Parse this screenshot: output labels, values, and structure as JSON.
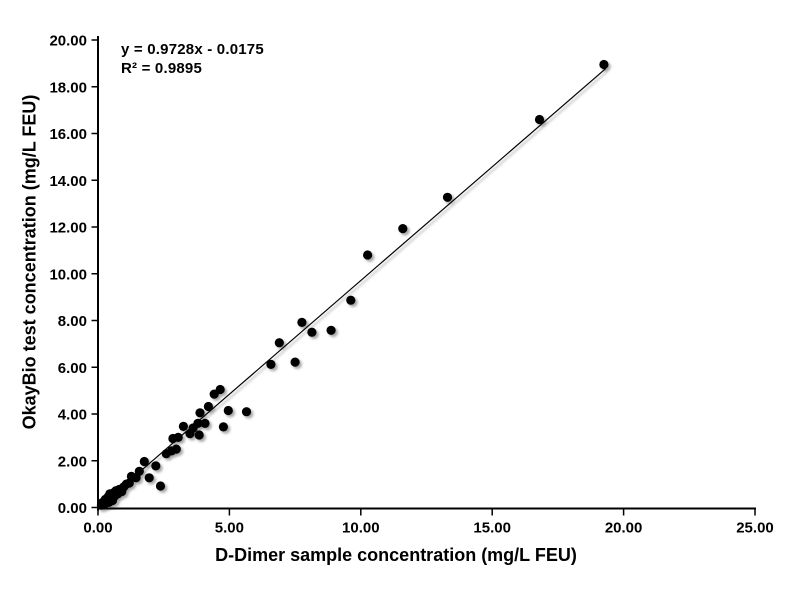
{
  "colors": {
    "background": "#ffffff",
    "marker": "#000000",
    "trendline": "#000000",
    "axis": "#000000",
    "text": "#000000"
  },
  "chart_data": {
    "type": "scatter",
    "title": "",
    "xlabel": "D-Dimer sample concentration (mg/L FEU)",
    "ylabel": "OkayBio test concentration (mg/L FEU)",
    "xlim": [
      0,
      25
    ],
    "ylim": [
      0,
      20
    ],
    "grid": false,
    "legend": "none",
    "x_tick_values": [
      0,
      5,
      10,
      15,
      20,
      25
    ],
    "x_tick_labels": [
      "0.00",
      "5.00",
      "10.00",
      "15.00",
      "20.00",
      "25.00"
    ],
    "y_tick_values": [
      0,
      2,
      4,
      6,
      8,
      10,
      12,
      14,
      16,
      18,
      20
    ],
    "y_tick_labels": [
      "0.00",
      "2.00",
      "4.00",
      "6.00",
      "8.00",
      "10.00",
      "12.00",
      "14.00",
      "16.00",
      "18.00",
      "20.00"
    ],
    "annotation": {
      "equation": "y = 0.9728x - 0.0175",
      "r_squared": "R² = 0.9895"
    },
    "trendline": {
      "slope": 0.9728,
      "intercept": -0.0175,
      "x_start": 0.12,
      "x_end": 19.32
    },
    "points": [
      [
        0.13,
        0.1
      ],
      [
        0.18,
        0.22
      ],
      [
        0.25,
        0.15
      ],
      [
        0.28,
        0.35
      ],
      [
        0.33,
        0.28
      ],
      [
        0.38,
        0.45
      ],
      [
        0.42,
        0.22
      ],
      [
        0.45,
        0.58
      ],
      [
        0.5,
        0.42
      ],
      [
        0.55,
        0.3
      ],
      [
        0.58,
        0.62
      ],
      [
        0.63,
        0.48
      ],
      [
        0.68,
        0.72
      ],
      [
        0.75,
        0.58
      ],
      [
        0.82,
        0.78
      ],
      [
        0.9,
        0.68
      ],
      [
        0.98,
        0.88
      ],
      [
        1.08,
        1.0
      ],
      [
        1.19,
        1.05
      ],
      [
        1.27,
        1.33
      ],
      [
        1.45,
        1.27
      ],
      [
        1.57,
        1.55
      ],
      [
        1.76,
        1.97
      ],
      [
        1.95,
        1.27
      ],
      [
        2.2,
        1.78
      ],
      [
        2.38,
        0.92
      ],
      [
        2.6,
        2.3
      ],
      [
        2.8,
        2.42
      ],
      [
        2.98,
        2.5
      ],
      [
        2.85,
        2.95
      ],
      [
        3.05,
        3.0
      ],
      [
        3.25,
        3.47
      ],
      [
        3.5,
        3.16
      ],
      [
        3.62,
        3.4
      ],
      [
        3.8,
        3.6
      ],
      [
        3.85,
        3.1
      ],
      [
        3.88,
        4.05
      ],
      [
        4.07,
        3.6
      ],
      [
        4.2,
        4.32
      ],
      [
        4.42,
        4.85
      ],
      [
        4.65,
        5.05
      ],
      [
        4.77,
        3.45
      ],
      [
        4.96,
        4.15
      ],
      [
        5.65,
        4.1
      ],
      [
        6.58,
        6.12
      ],
      [
        6.9,
        7.05
      ],
      [
        7.5,
        6.22
      ],
      [
        7.76,
        7.92
      ],
      [
        8.14,
        7.5
      ],
      [
        8.87,
        7.58
      ],
      [
        9.62,
        8.87
      ],
      [
        10.26,
        10.8
      ],
      [
        11.6,
        11.93
      ],
      [
        13.3,
        13.27
      ],
      [
        16.8,
        16.6
      ],
      [
        19.25,
        18.95
      ]
    ]
  }
}
